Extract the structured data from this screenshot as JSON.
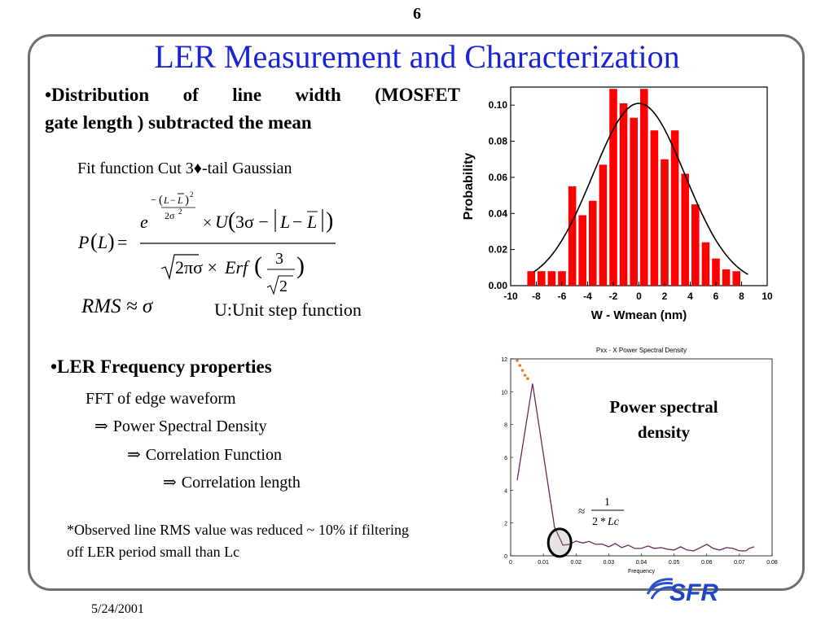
{
  "page_number": "6",
  "title": "LER Measurement and Characterization",
  "bullet1": {
    "line1": "•Distribution of line width (MOSFET",
    "line2": "gate length ) subtracted the mean",
    "fit_label": "Fit function Cut 3♦-tail Gaussian",
    "rms_label": "RMS ≈ σ",
    "unit_label": "U:Unit step function"
  },
  "bullet2": {
    "heading": "•LER Frequency properties",
    "steps": [
      "FFT of edge waveform",
      "Power Spectral Density",
      "Correlation Function",
      "Correlation length"
    ],
    "arrow": "⇒"
  },
  "note": "*Observed line RMS value was reduced ~ 10% if filtering off LER period small than Lc",
  "date": "5/24/2001",
  "psd_label": "Power spectral density",
  "logo_text": "SFR",
  "colors": {
    "title": "#1a23d6",
    "bars": "#ff0000",
    "frame": "#6f6f6f",
    "psd_line": "#6a2a5a",
    "psd_dots": "#e87a2a"
  },
  "chart_data": [
    {
      "type": "bar",
      "title": "",
      "xlabel": "W - Wmean (nm)",
      "ylabel": "Probability",
      "xlim": [
        -10,
        10
      ],
      "ylim": [
        0,
        0.11
      ],
      "xticks": [
        "-10",
        "-8",
        "-6",
        "-4",
        "-2",
        "0",
        "2",
        "4",
        "6",
        "8",
        "10"
      ],
      "yticks": [
        "0.00",
        "0.02",
        "0.04",
        "0.06",
        "0.08",
        "0.10"
      ],
      "bin_width": 0.8,
      "x": [
        -8.4,
        -7.6,
        -6.8,
        -6.0,
        -5.2,
        -4.4,
        -3.6,
        -2.8,
        -2.0,
        -1.2,
        -0.4,
        0.4,
        1.2,
        2.0,
        2.8,
        3.6,
        4.4,
        5.2,
        6.0,
        6.8,
        7.6
      ],
      "values": [
        0.008,
        0.008,
        0.008,
        0.008,
        0.055,
        0.039,
        0.047,
        0.067,
        0.109,
        0.101,
        0.093,
        0.109,
        0.086,
        0.07,
        0.086,
        0.062,
        0.045,
        0.024,
        0.015,
        0.009,
        0.008
      ],
      "fit_curve": {
        "type": "gaussian",
        "mean": 0,
        "sigma": 3.6,
        "peak": 0.101,
        "x_range": [
          -8.2,
          8.5
        ]
      }
    },
    {
      "type": "line",
      "title": "Pxx - X Power Spectral Density",
      "xlabel": "Frequency",
      "ylabel": "",
      "xlim": [
        0,
        0.08
      ],
      "ylim": [
        0,
        12
      ],
      "xticks": [
        "0",
        "0.01",
        "0.02",
        "0.03",
        "0.04",
        "0.05",
        "0.06",
        "0.07",
        "0.08"
      ],
      "yticks": [
        "0",
        "2",
        "4",
        "6",
        "8",
        "10",
        "12"
      ],
      "x": [
        0.002,
        0.0067,
        0.0133,
        0.0133,
        0.016,
        0.018,
        0.02,
        0.022,
        0.024,
        0.026,
        0.028,
        0.03,
        0.032,
        0.034,
        0.036,
        0.038,
        0.04,
        0.042,
        0.044,
        0.046,
        0.048,
        0.05,
        0.052,
        0.054,
        0.056,
        0.058,
        0.06,
        0.062,
        0.064,
        0.066,
        0.068,
        0.07,
        0.072,
        0.073,
        0.0745
      ],
      "values": [
        4.6,
        10.5,
        1.9,
        1.8,
        0.65,
        0.7,
        0.9,
        0.78,
        0.88,
        0.7,
        0.72,
        0.55,
        0.75,
        0.5,
        0.65,
        0.45,
        0.45,
        0.6,
        0.45,
        0.5,
        0.4,
        0.35,
        0.55,
        0.35,
        0.3,
        0.5,
        0.7,
        0.45,
        0.35,
        0.5,
        0.45,
        0.3,
        0.3,
        0.45,
        0.55
      ],
      "dotted_extrapolation": {
        "x": [
          0.002,
          0.0028,
          0.0036,
          0.0044,
          0.0052
        ],
        "values": [
          11.9,
          11.6,
          11.3,
          11.0,
          10.8
        ]
      },
      "annotation": "≈ 1 / (2*Lc)",
      "highlight_circle_at": {
        "x": 0.015,
        "y": 0.8
      }
    }
  ]
}
